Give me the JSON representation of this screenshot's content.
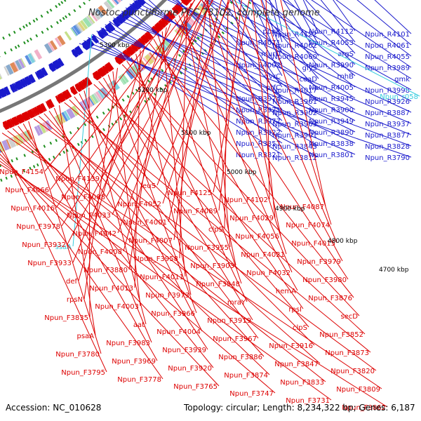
{
  "title": "Nostoc punctiforme PCC 73102, complete genome",
  "accession": "Accession: NC_010628",
  "topology": "Topology: circular; Length: 8,234,322 bp; Genes: 6,187",
  "colors": {
    "forward": "#dd0000",
    "reverse": "#1a1acc",
    "rna": "#33ccdd",
    "backbone": "#777777",
    "bg": "#ffffff"
  },
  "ticks": [
    "5300 kbp",
    "5200 kbp",
    "5100 kbp",
    "5000 kbp",
    "4900 kbp",
    "4800 kbp",
    "4700 kbp"
  ],
  "labels_reverse": [
    "ppnK",
    "Npun_R4122",
    "Npun_R4112",
    "Npun_R4101",
    "Npun_R4071",
    "Npun_R4062",
    "Npun_R4053",
    "Npun_R4061",
    "murD",
    "Npun_R4060",
    "argS",
    "Npun_R4055",
    "Npun_R4002",
    "glyS",
    "Npun_R3990",
    "Npun_R3989",
    "uvrC",
    "coaD",
    "rnhB",
    "gmk",
    "prfC",
    "Npun_R4017",
    "Npun_R4005",
    "Npun_R3998",
    "Npun_R3974",
    "Npun_R3961",
    "Npun_R3945",
    "Npun_R3926",
    "Npun_R3921",
    "Npun_R3902",
    "Npun_R3900",
    "Npun_R3887",
    "Npun_R3977",
    "Npun_R3963",
    "Npun_R3949",
    "Npun_R3937",
    "Npun_R3922",
    "Npun_R3901",
    "Npun_R3890",
    "Npun_R3877",
    "Npun_R3857",
    "Npun_R3845",
    "Npun_R3838",
    "Npun_R3828",
    "Npun_R3821",
    "Npun_R3812",
    "Npun_R3801",
    "Npun_R3790"
  ],
  "labels_rna": [
    "Npun_r058",
    "ssaA"
  ],
  "labels_forward": [
    "Npun_F4154",
    "Npun_F4139",
    "leuS",
    "Npun_F4125",
    "Npun_F4102",
    "Npun_F4087",
    "Npun_F4066",
    "Npun_F4088",
    "Npun_F4052",
    "Npun_F4089",
    "Npun_F4029",
    "Npun_F4074",
    "Npun_F4016",
    "Npun_F4033",
    "Npun_F4001",
    "clpS",
    "Npun_F4056",
    "Npun_F4015",
    "Npun_F3978",
    "Npun_F4042",
    "Npun_F4007",
    "Npun_F3955",
    "Npun_F4021",
    "Npun_F3979",
    "Npun_F3932",
    "Npun_F4008",
    "Npun_F3958",
    "Npun_F3903",
    "Npun_F4032",
    "Npun_F3980",
    "Npun_F3933",
    "Npun_F3880",
    "Npun_F4011",
    "Npun_F3948",
    "hemA",
    "Npun_F3876",
    "def",
    "Npun_F4013",
    "Npun_F3973",
    "mraY",
    "rpsI",
    "secD",
    "rpsN",
    "Npun_F4003",
    "Npun_F3966",
    "Npun_F3919",
    "clpS",
    "Npun_F3852",
    "Npun_F3835",
    "aat",
    "Npun_F4004",
    "Npun_F3967",
    "Npun_F3916",
    "Npun_F3873",
    "psaA",
    "Npun_F3983",
    "Npun_F3939",
    "Npun_F3886",
    "Npun_F3847",
    "Npun_F3820",
    "Npun_F3780",
    "Npun_F3969",
    "Npun_F3920",
    "Npun_F3874",
    "Npun_F3833",
    "Npun_F3809",
    "Npun_F3795",
    "Npun_F3778",
    "Npun_F3765",
    "Npun_F3747",
    "Npun_F3731",
    "Npun_F3862"
  ]
}
